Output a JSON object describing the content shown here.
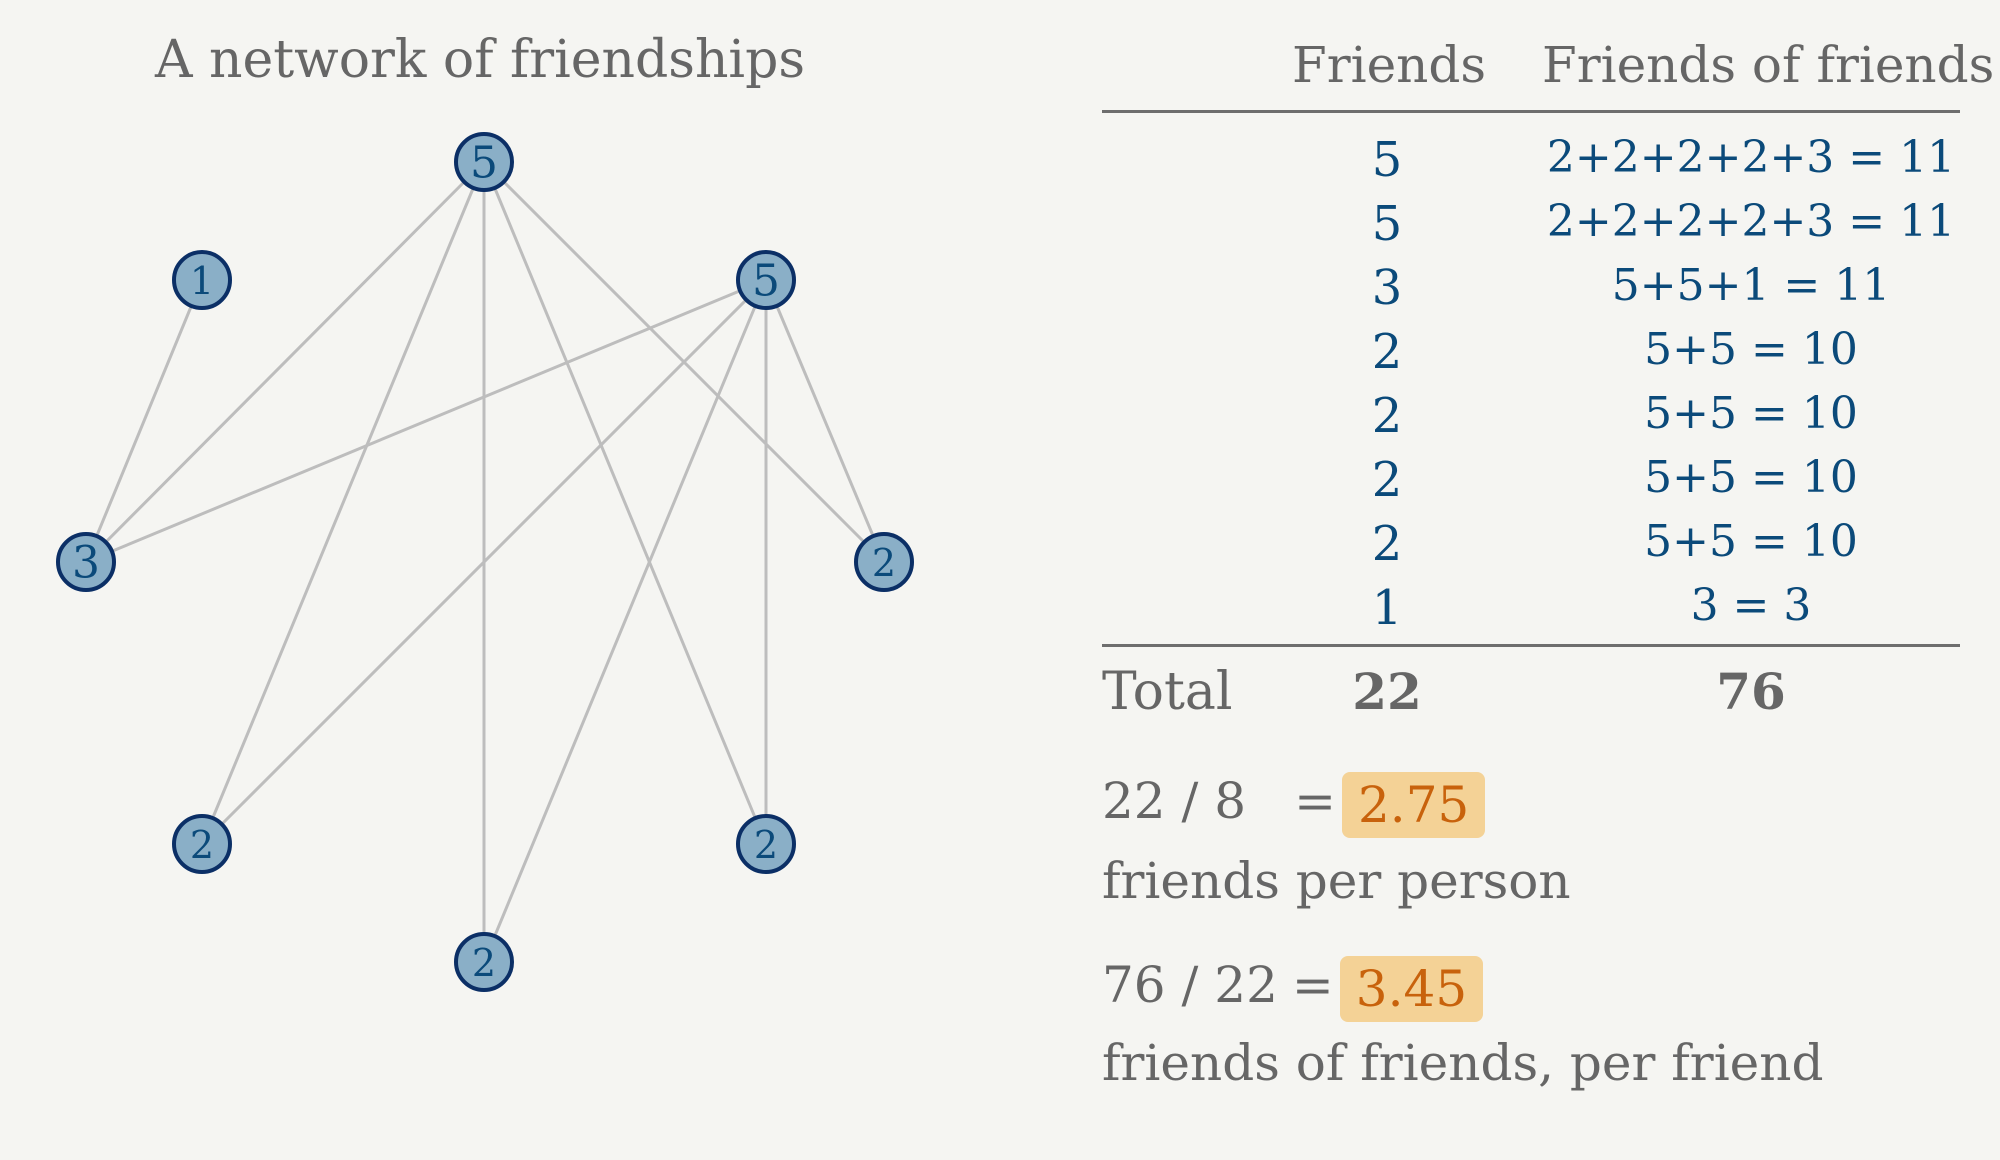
{
  "network": {
    "title": "A network of friendships",
    "nodes": [
      {
        "id": "top",
        "label": "5"
      },
      {
        "id": "right",
        "label": "5"
      },
      {
        "id": "upper-left",
        "label": "1"
      },
      {
        "id": "left",
        "label": "3"
      },
      {
        "id": "far-right",
        "label": "2"
      },
      {
        "id": "lower-left",
        "label": "2"
      },
      {
        "id": "lower-right",
        "label": "2"
      },
      {
        "id": "bottom",
        "label": "2"
      }
    ],
    "edges": [
      [
        "upper-left",
        "left"
      ],
      [
        "top",
        "left"
      ],
      [
        "top",
        "lower-left"
      ],
      [
        "top",
        "bottom"
      ],
      [
        "top",
        "lower-right"
      ],
      [
        "top",
        "far-right"
      ],
      [
        "right",
        "left"
      ],
      [
        "right",
        "lower-left"
      ],
      [
        "right",
        "bottom"
      ],
      [
        "right",
        "lower-right"
      ],
      [
        "right",
        "far-right"
      ]
    ],
    "colors": {
      "node_fill": "#8aafc7",
      "node_stroke": "#0b2f66",
      "edge": "#bdbdbd",
      "label": "#0b4a7a"
    }
  },
  "table": {
    "header_friends": "Friends",
    "header_fof": "Friends of friends",
    "rows": [
      {
        "friends": "5",
        "fof": "2+2+2+2+3 = 11"
      },
      {
        "friends": "5",
        "fof": "2+2+2+2+3 = 11"
      },
      {
        "friends": "3",
        "fof": "5+5+1 = 11"
      },
      {
        "friends": "2",
        "fof": "5+5 = 10"
      },
      {
        "friends": "2",
        "fof": "5+5 = 10"
      },
      {
        "friends": "2",
        "fof": "5+5 = 10"
      },
      {
        "friends": "2",
        "fof": "5+5 = 10"
      },
      {
        "friends": "1",
        "fof": "3 = 3"
      }
    ],
    "total_label": "Total",
    "total_friends": "22",
    "total_fof": "76"
  },
  "calculations": {
    "friends_per_person": {
      "expression": "22 / 8",
      "equals": "=",
      "result": "2.75",
      "caption": "friends per person"
    },
    "fof_per_friend": {
      "expression": "76 / 22",
      "equals": "=",
      "result": "3.45",
      "caption": "friends of friends, per friend"
    },
    "highlight_bg": "#f4d296",
    "highlight_text": "#c8620c"
  }
}
